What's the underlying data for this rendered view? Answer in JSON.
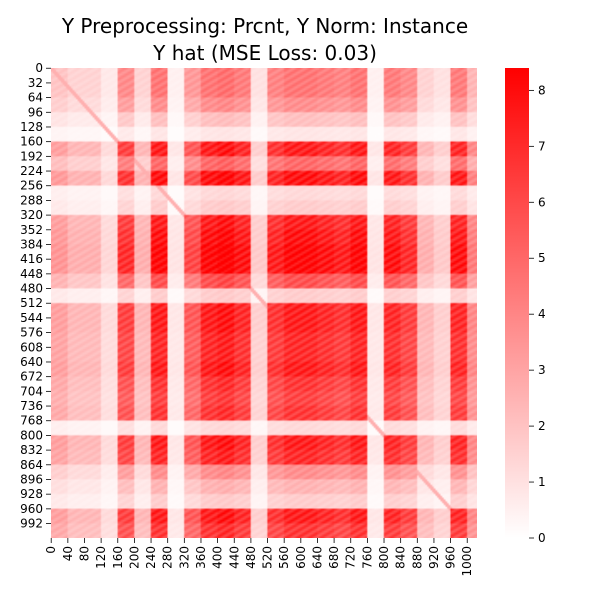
{
  "chart_data": {
    "type": "heatmap",
    "title": [
      "Y Preprocessing: Prcnt, Y Norm: Instance",
      "Y hat (MSE Loss: 0.03)"
    ],
    "xlabel": "",
    "ylabel": "",
    "n": 1024,
    "y_ticks": [
      0,
      32,
      64,
      96,
      128,
      160,
      192,
      224,
      256,
      288,
      320,
      352,
      384,
      416,
      448,
      480,
      512,
      544,
      576,
      608,
      640,
      672,
      704,
      736,
      768,
      800,
      832,
      864,
      896,
      928,
      960,
      992
    ],
    "x_ticks": [
      0,
      40,
      80,
      120,
      160,
      200,
      240,
      280,
      320,
      360,
      400,
      440,
      480,
      520,
      560,
      600,
      640,
      680,
      720,
      760,
      800,
      840,
      880,
      920,
      960,
      1000
    ],
    "colorbar": {
      "min": 0,
      "max": 8.4,
      "ticks": [
        0,
        1,
        2,
        3,
        4,
        5,
        6,
        7,
        8
      ],
      "colors": [
        "#ffffff",
        "#ff0000"
      ]
    },
    "grid": false,
    "row_weights_by_block_of_32": [
      0.55,
      0.55,
      0.45,
      0.25,
      0.1,
      0.9,
      0.6,
      0.95,
      0.15,
      0.2,
      0.9,
      0.95,
      1.0,
      1.0,
      0.7,
      0.2,
      0.9,
      0.9,
      0.85,
      0.85,
      0.9,
      0.8,
      0.75,
      0.8,
      0.15,
      0.9,
      0.85,
      0.45,
      0.3,
      0.2,
      0.9,
      0.8
    ],
    "col_weights_by_block_of_40": [
      0.4,
      0.3,
      0.3,
      0.15,
      0.8,
      0.3,
      0.95,
      0.1,
      0.7,
      0.95,
      1.0,
      0.9,
      0.2,
      0.85,
      0.95,
      0.95,
      0.9,
      0.85,
      0.95,
      0.1,
      0.9,
      0.8,
      0.3,
      0.2,
      0.9,
      0.5
    ],
    "diagonal_value": 2.6
  }
}
